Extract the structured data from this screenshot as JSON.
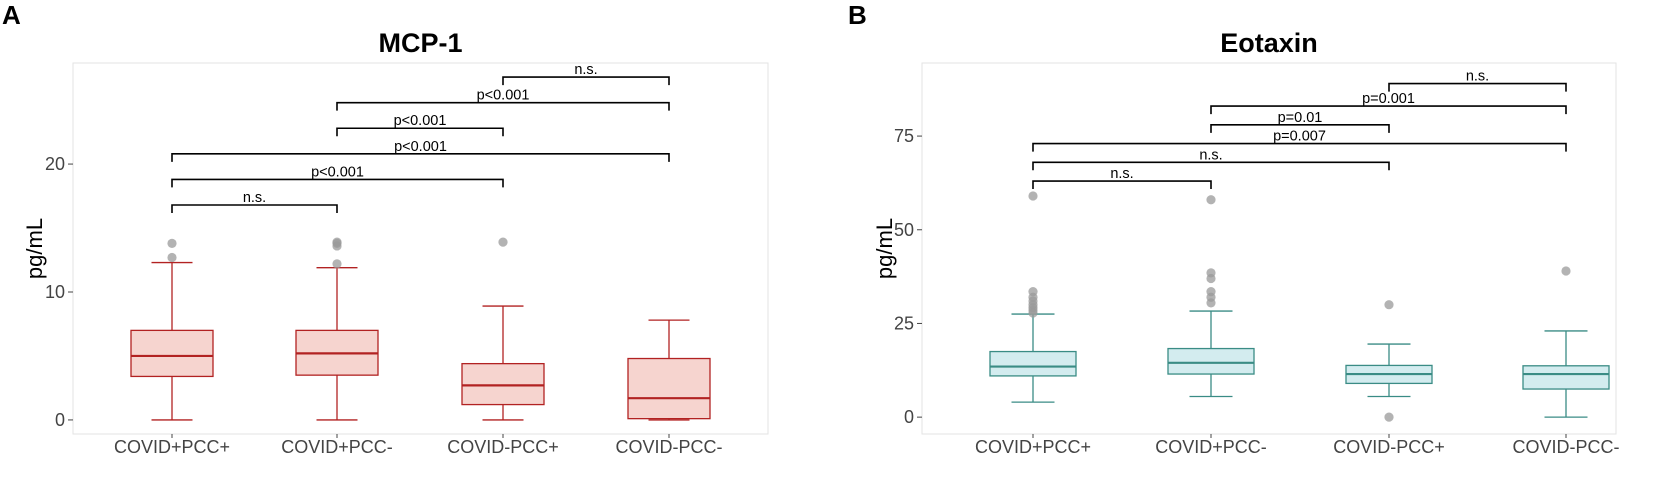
{
  "chart_data": [
    {
      "type": "box",
      "panel_label": "A",
      "title": "MCP-1",
      "xlabel": "",
      "ylabel": "pg/mL",
      "ylim": [
        -1.1,
        27.9
      ],
      "yticks": [
        0,
        10,
        20
      ],
      "colors": {
        "box_fill": "#f6d4cf",
        "box_stroke": "#b22222",
        "outlier": "#9a9a9a"
      },
      "categories": [
        "COVID+PCC+",
        "COVID+PCC-",
        "COVID-PCC+",
        "COVID-PCC-"
      ],
      "boxes": [
        {
          "category": "COVID+PCC+",
          "min": 0,
          "q1": 3.4,
          "median": 5.0,
          "q3": 7.0,
          "max": 12.3,
          "outliers": [
            12.7,
            13.8
          ]
        },
        {
          "category": "COVID+PCC-",
          "min": 0,
          "q1": 3.5,
          "median": 5.2,
          "q3": 7.0,
          "max": 11.9,
          "outliers": [
            12.2,
            13.6,
            13.8,
            13.9
          ]
        },
        {
          "category": "COVID-PCC+",
          "min": 0,
          "q1": 1.2,
          "median": 2.7,
          "q3": 4.4,
          "max": 8.9,
          "outliers": [
            13.9
          ]
        },
        {
          "category": "COVID-PCC-",
          "min": 0,
          "q1": 0.1,
          "median": 1.7,
          "q3": 4.8,
          "max": 7.8,
          "outliers": []
        }
      ],
      "comparisons": [
        {
          "from": 0,
          "to": 1,
          "level": 16.8,
          "label": "n.s."
        },
        {
          "from": 0,
          "to": 2,
          "level": 18.8,
          "label": "p<0.001"
        },
        {
          "from": 0,
          "to": 3,
          "level": 20.8,
          "label": "p<0.001"
        },
        {
          "from": 1,
          "to": 2,
          "level": 22.8,
          "label": "p<0.001"
        },
        {
          "from": 1,
          "to": 3,
          "level": 24.8,
          "label": "p<0.001"
        },
        {
          "from": 2,
          "to": 3,
          "level": 26.8,
          "label": "n.s."
        }
      ]
    },
    {
      "type": "box",
      "panel_label": "B",
      "title": "Eotaxin",
      "xlabel": "",
      "ylabel": "pg/mL",
      "ylim": [
        -4.5,
        94.5
      ],
      "yticks": [
        0,
        25,
        50,
        75
      ],
      "colors": {
        "box_fill": "#d3ecef",
        "box_stroke": "#3a8c85",
        "outlier": "#9a9a9a"
      },
      "categories": [
        "COVID+PCC+",
        "COVID+PCC-",
        "COVID-PCC+",
        "COVID-PCC-"
      ],
      "boxes": [
        {
          "category": "COVID+PCC+",
          "min": 4,
          "q1": 11,
          "median": 13.5,
          "q3": 17.5,
          "max": 27.5,
          "outliers": [
            27.8,
            28.5,
            29.2,
            30,
            31,
            32,
            33.5,
            59
          ]
        },
        {
          "category": "COVID+PCC-",
          "min": 5.5,
          "q1": 11.5,
          "median": 14.5,
          "q3": 18.3,
          "max": 28.3,
          "outliers": [
            30.5,
            32,
            33.5,
            37,
            38.5,
            58
          ]
        },
        {
          "category": "COVID-PCC+",
          "min": 5.5,
          "q1": 9,
          "median": 11.5,
          "q3": 13.8,
          "max": 19.5,
          "outliers": [
            0,
            30
          ]
        },
        {
          "category": "COVID-PCC-",
          "min": 0,
          "q1": 7.5,
          "median": 11.5,
          "q3": 13.7,
          "max": 23,
          "outliers": [
            39
          ]
        }
      ],
      "comparisons": [
        {
          "from": 0,
          "to": 1,
          "level": 63,
          "label": "n.s."
        },
        {
          "from": 0,
          "to": 2,
          "level": 68,
          "label": "n.s."
        },
        {
          "from": 0,
          "to": 3,
          "level": 73,
          "label": "p=0.007"
        },
        {
          "from": 1,
          "to": 2,
          "level": 78,
          "label": "p=0.01"
        },
        {
          "from": 1,
          "to": 3,
          "level": 83,
          "label": "p=0.001"
        },
        {
          "from": 2,
          "to": 3,
          "level": 89,
          "label": "n.s."
        }
      ]
    }
  ]
}
